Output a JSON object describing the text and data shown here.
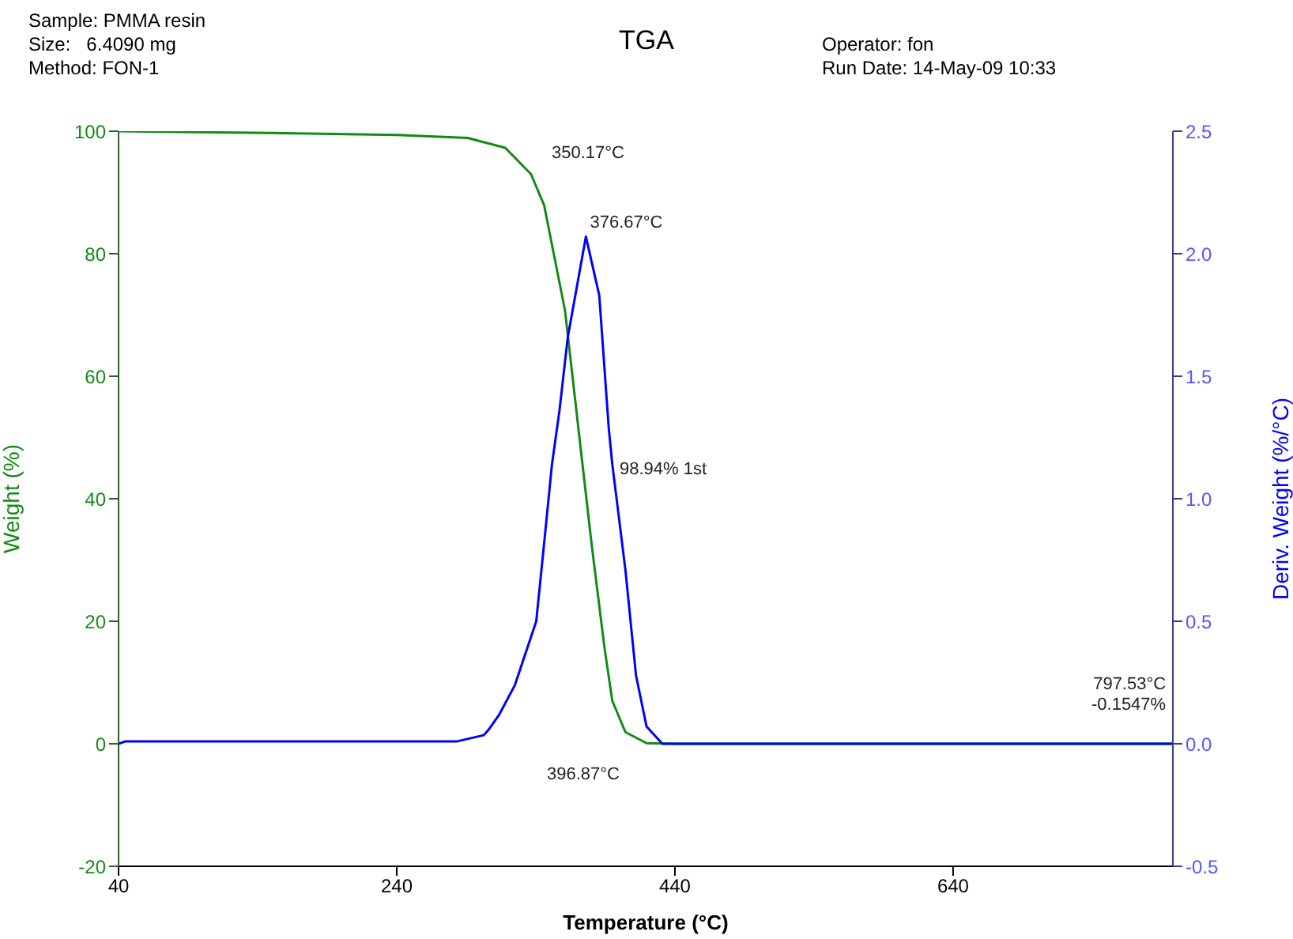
{
  "chart_data": {
    "type": "line",
    "title": "TGA",
    "xlabel": "Temperature (°C)",
    "ylabel": "Weight (%)",
    "y2label": "Deriv. Weight (%/°C)",
    "xlim": [
      40,
      798
    ],
    "xticks": [
      40,
      240,
      440,
      640
    ],
    "ylim": [
      -20,
      100
    ],
    "yticks": [
      -20,
      0,
      20,
      40,
      60,
      80,
      100
    ],
    "y2lim": [
      -0.5,
      2.5
    ],
    "y2ticks": [
      {
        "value": -0.5,
        "label": "-0.5"
      },
      {
        "value": 0,
        "label": "0.0"
      },
      {
        "value": 0.5,
        "label": "0.5"
      },
      {
        "value": 1,
        "label": "1.0"
      },
      {
        "value": 1.5,
        "label": "1.5"
      },
      {
        "value": 2,
        "label": "2.0"
      },
      {
        "value": 2.5,
        "label": "2.5"
      }
    ],
    "series": [
      {
        "color": "#138a13",
        "x": [
          40,
          150,
          240,
          291,
          318,
          336.5,
          346,
          353.5,
          361,
          370.5,
          380,
          389.4,
          395,
          404.4,
          419.6,
          440,
          600,
          797.53
        ],
        "values": [
          100,
          99.7,
          99.4,
          98.9,
          97.3,
          93.0,
          87.9,
          79.3,
          70.7,
          51.7,
          32.8,
          15.6,
          7.0,
          1.9,
          0.1,
          0,
          0,
          0
        ]
      },
      {
        "color": "#0000ff",
        "axis": "y2",
        "x": [
          40,
          45,
          100,
          200,
          283.6,
          302.5,
          306,
          313.8,
          325,
          340.3,
          346,
          351.6,
          357,
          363,
          376,
          385.6,
          392.4,
          395,
          404.4,
          412,
          419.6,
          431,
          600,
          797.53
        ],
        "values": [
          0,
          0.01,
          0.01,
          0.01,
          0.01,
          0.035,
          0.057,
          0.12,
          0.24,
          0.5,
          0.82,
          1.14,
          1.36,
          1.66,
          2.07,
          1.83,
          1.29,
          1.14,
          0.71,
          0.28,
          0.07,
          0,
          0,
          0
        ]
      }
    ],
    "annotations": [
      "Sample: PMMA resin",
      "Size:   6.4090 mg",
      "Method: FON-1",
      "Operator: fon",
      "Run Date: 14-May-09 10:33",
      "350.17°C",
      {
        "text": "376.67°C",
        "x": 376.67,
        "y": 82.7
      },
      "98.94% 1st",
      "396.87°C",
      {
        "text": "797.53°C\n-0.1547%",
        "x": 797.53,
        "y": -0.15
      }
    ]
  }
}
